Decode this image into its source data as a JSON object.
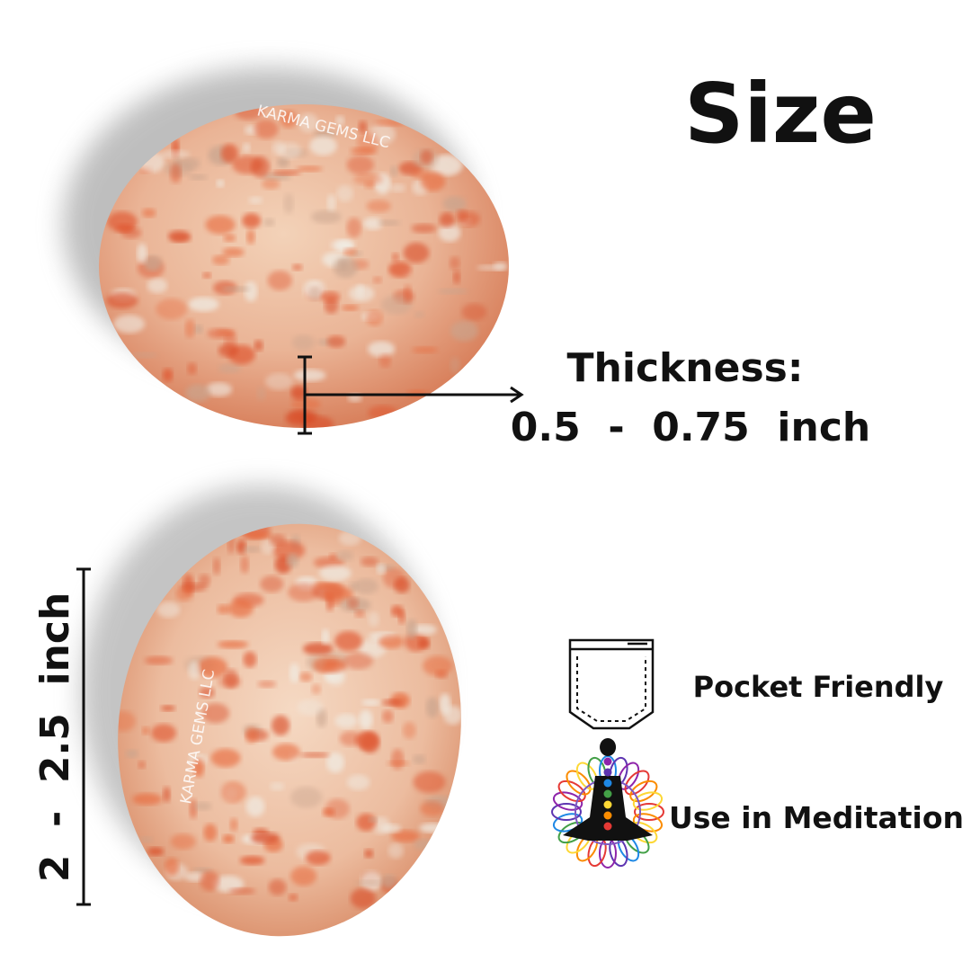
{
  "title": "Size",
  "watermarks": [
    "KARMA GEMS LLC",
    "KARMA GEMS LLC"
  ],
  "thickness": {
    "label": "Thickness:",
    "value": "0.5  -  0.75  inch"
  },
  "length": "2  -  2.5  inch",
  "features": [
    {
      "label": "Pocket Friendly"
    },
    {
      "label": "Use in Meditation"
    }
  ]
}
